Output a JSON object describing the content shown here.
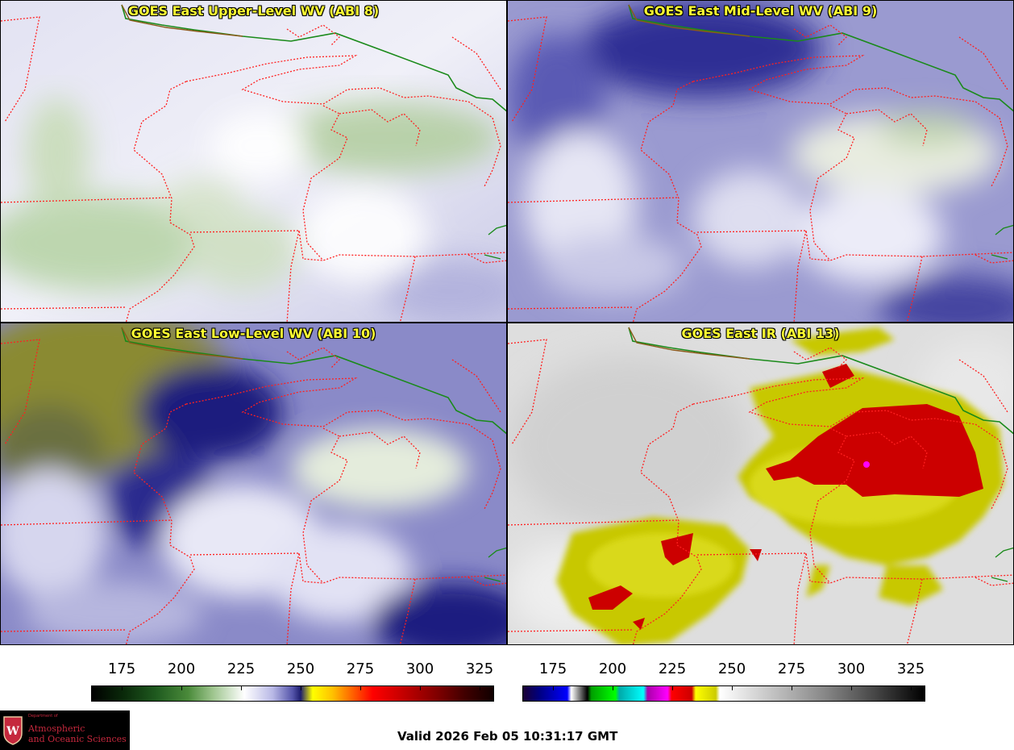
{
  "panels": [
    {
      "title": "GOES East Upper-Level WV (ABI 8)"
    },
    {
      "title": "GOES East Mid-Level WV (ABI 9)"
    },
    {
      "title": "GOES East Low-Level WV (ABI 10)"
    },
    {
      "title": "GOES East IR (ABI 13)"
    }
  ],
  "colorbars": {
    "wv": {
      "ticks": [
        "175",
        "200",
        "225",
        "250",
        "275",
        "300",
        "325"
      ]
    },
    "ir": {
      "ticks": [
        "175",
        "200",
        "225",
        "250",
        "275",
        "300",
        "325"
      ]
    }
  },
  "logo": {
    "department": "Department of",
    "line1": "Atmospheric",
    "line2": "and Oceanic Sciences"
  },
  "valid_time": "Valid 2026 Feb 05 10:31:17 GMT",
  "colors": {
    "state_border": "#ff2020",
    "country_border": "#1a8a1a",
    "coast": "#8a5a1a",
    "title_text": "#ffff33"
  }
}
